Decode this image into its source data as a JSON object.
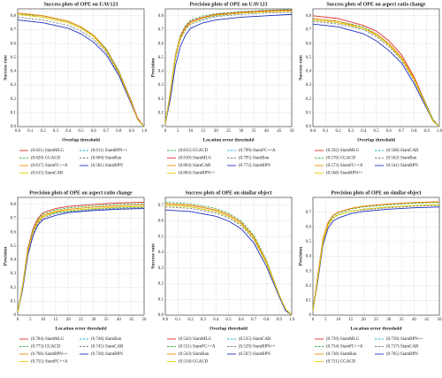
{
  "chart_data": [
    {
      "type": "line",
      "title": "Success plots of OPE on UAV123",
      "x_label": "Overlap threshold",
      "y_label": "Success rate",
      "grid": true,
      "xlim": [
        0,
        1
      ],
      "xticks": [
        {
          "value": 0,
          "label": "0.0"
        },
        0.1,
        0.2,
        0.3,
        0.4,
        0.5,
        0.6,
        0.7,
        0.8,
        0.9,
        {
          "value": 1,
          "label": "1.0"
        }
      ],
      "ylim": [
        0,
        0.85
      ],
      "yticks": [
        {
          "value": 0,
          "label": "0.0"
        },
        0.1,
        0.2,
        0.3,
        0.4,
        0.5,
        0.6,
        0.7,
        0.8
      ],
      "x": [
        0,
        0.2,
        0.4,
        0.5,
        0.6,
        0.7,
        0.8,
        0.9,
        0.95,
        1
      ],
      "series": [
        {
          "name": "(0.621) SiamMLG",
          "color": "#e03030",
          "dashed": false,
          "values": [
            0.82,
            0.8,
            0.76,
            0.72,
            0.66,
            0.56,
            0.4,
            0.18,
            0.06,
            0
          ]
        },
        {
          "name": "(0.611) SiamRPN++",
          "color": "#20b0d0",
          "dashed": true,
          "values": [
            0.81,
            0.79,
            0.75,
            0.71,
            0.65,
            0.55,
            0.39,
            0.17,
            0.05,
            0
          ]
        },
        {
          "name": "(0.620) CGACD",
          "color": "#3cb043",
          "dashed": true,
          "values": [
            0.81,
            0.8,
            0.76,
            0.72,
            0.66,
            0.56,
            0.4,
            0.17,
            0.05,
            0
          ]
        },
        {
          "name": "(0.604) SiamBan",
          "color": "#808080",
          "dashed": true,
          "values": [
            0.79,
            0.77,
            0.73,
            0.69,
            0.63,
            0.54,
            0.38,
            0.17,
            0.05,
            0
          ]
        },
        {
          "name": "(0.617) SiamFC++A",
          "color": "#f08c00",
          "dashed": false,
          "values": [
            0.82,
            0.8,
            0.76,
            0.72,
            0.66,
            0.55,
            0.39,
            0.17,
            0.05,
            0
          ]
        },
        {
          "name": "(0.581) SiamRPN",
          "color": "#2030c0",
          "dashed": false,
          "values": [
            0.77,
            0.75,
            0.71,
            0.67,
            0.61,
            0.52,
            0.37,
            0.16,
            0.05,
            0
          ]
        },
        {
          "name": "(0.615) SiamCAR",
          "color": "#e6d000",
          "dashed": false,
          "values": [
            0.81,
            0.79,
            0.75,
            0.71,
            0.65,
            0.55,
            0.39,
            0.17,
            0.05,
            0
          ]
        }
      ]
    },
    {
      "type": "line",
      "title": "Precision plots of OPE on UAV123",
      "x_label": "Location error threshold",
      "y_label": "Precision",
      "grid": true,
      "xlim": [
        0,
        50
      ],
      "xticks": [
        0,
        5,
        10,
        15,
        20,
        25,
        30,
        35,
        40,
        45,
        50
      ],
      "ylim": [
        0,
        0.85
      ],
      "yticks": [
        0,
        0.1,
        0.2,
        0.3,
        0.4,
        0.5,
        0.6,
        0.7,
        0.8
      ],
      "x": [
        0,
        2,
        4,
        6,
        8,
        10,
        15,
        20,
        30,
        40,
        50
      ],
      "series": [
        {
          "name": "(0.815) CGACD",
          "color": "#3cb043",
          "dashed": true,
          "values": [
            0.02,
            0.25,
            0.52,
            0.66,
            0.73,
            0.77,
            0.8,
            0.815,
            0.83,
            0.84,
            0.845
          ]
        },
        {
          "name": "(0.799) SiamFC++A",
          "color": "#20b0d0",
          "dashed": true,
          "values": [
            0.02,
            0.24,
            0.5,
            0.64,
            0.71,
            0.75,
            0.78,
            0.8,
            0.82,
            0.83,
            0.835
          ]
        },
        {
          "name": "(0.810) SiamMLG",
          "color": "#e03030",
          "dashed": false,
          "values": [
            0.02,
            0.25,
            0.51,
            0.65,
            0.72,
            0.76,
            0.79,
            0.81,
            0.825,
            0.835,
            0.84
          ]
        },
        {
          "name": "(0.795) SiamBan",
          "color": "#808080",
          "dashed": true,
          "values": [
            0.02,
            0.23,
            0.49,
            0.63,
            0.7,
            0.74,
            0.77,
            0.795,
            0.81,
            0.82,
            0.825
          ]
        },
        {
          "name": "(0.804) SiamCAR",
          "color": "#f08c00",
          "dashed": false,
          "values": [
            0.02,
            0.24,
            0.5,
            0.64,
            0.71,
            0.75,
            0.785,
            0.805,
            0.82,
            0.83,
            0.835
          ]
        },
        {
          "name": "(0.772) SiamRPN",
          "color": "#2030c0",
          "dashed": false,
          "values": [
            0.02,
            0.2,
            0.44,
            0.58,
            0.66,
            0.71,
            0.75,
            0.77,
            0.79,
            0.8,
            0.81
          ]
        },
        {
          "name": "(0.804) SiamRPN++",
          "color": "#e6d000",
          "dashed": false,
          "values": [
            0.02,
            0.24,
            0.5,
            0.64,
            0.71,
            0.75,
            0.785,
            0.805,
            0.82,
            0.83,
            0.835
          ]
        }
      ]
    },
    {
      "type": "line",
      "title": "Success plots of OPE on aspect ratio change",
      "x_label": "Overlap threshold",
      "y_label": "Success rate",
      "grid": true,
      "xlim": [
        0,
        1
      ],
      "xticks": [
        {
          "value": 0,
          "label": "0.0"
        },
        0.1,
        0.2,
        0.3,
        0.4,
        0.5,
        0.6,
        0.7,
        0.8,
        0.9,
        {
          "value": 1,
          "label": "1.0"
        }
      ],
      "ylim": [
        0,
        0.85
      ],
      "yticks": [
        {
          "value": 0,
          "label": "0.0"
        },
        0.1,
        0.2,
        0.3,
        0.4,
        0.5,
        0.6,
        0.7,
        0.8
      ],
      "x": [
        0,
        0.2,
        0.4,
        0.5,
        0.6,
        0.7,
        0.8,
        0.9,
        0.95,
        1
      ],
      "series": [
        {
          "name": "(0.592) SiamMLG",
          "color": "#e03030",
          "dashed": false,
          "values": [
            0.8,
            0.78,
            0.73,
            0.69,
            0.62,
            0.52,
            0.36,
            0.15,
            0.05,
            0
          ]
        },
        {
          "name": "(0.568) SiamCAR",
          "color": "#20b0d0",
          "dashed": true,
          "values": [
            0.77,
            0.75,
            0.71,
            0.66,
            0.59,
            0.49,
            0.34,
            0.14,
            0.04,
            0
          ]
        },
        {
          "name": "(0.576) CGACD",
          "color": "#3cb043",
          "dashed": true,
          "values": [
            0.78,
            0.76,
            0.72,
            0.67,
            0.6,
            0.5,
            0.35,
            0.15,
            0.05,
            0
          ]
        },
        {
          "name": "(0.562) SiamBan",
          "color": "#808080",
          "dashed": true,
          "values": [
            0.76,
            0.74,
            0.7,
            0.65,
            0.58,
            0.48,
            0.33,
            0.14,
            0.04,
            0
          ]
        },
        {
          "name": "(0.573) SiamFC++A",
          "color": "#f08c00",
          "dashed": false,
          "values": [
            0.78,
            0.76,
            0.71,
            0.67,
            0.6,
            0.5,
            0.35,
            0.14,
            0.04,
            0
          ]
        },
        {
          "name": "(0.541) SiamRPN",
          "color": "#2030c0",
          "dashed": false,
          "values": [
            0.74,
            0.72,
            0.67,
            0.62,
            0.55,
            0.46,
            0.31,
            0.13,
            0.04,
            0
          ]
        },
        {
          "name": "(0.568) SiamRPN++",
          "color": "#e6d000",
          "dashed": false,
          "values": [
            0.77,
            0.75,
            0.71,
            0.66,
            0.59,
            0.49,
            0.34,
            0.14,
            0.04,
            0
          ]
        }
      ]
    },
    {
      "type": "line",
      "title": "Precision plots of OPE on aspect ratio change",
      "x_label": "Location error threshold",
      "y_label": "Precision",
      "grid": true,
      "xlim": [
        0,
        50
      ],
      "xticks": [
        0,
        5,
        10,
        15,
        20,
        25,
        30,
        35,
        40,
        45,
        50
      ],
      "ylim": [
        0,
        0.85
      ],
      "yticks": [
        0,
        0.1,
        0.2,
        0.3,
        0.4,
        0.5,
        0.6,
        0.7,
        0.8
      ],
      "x": [
        0,
        2,
        4,
        6,
        8,
        10,
        15,
        20,
        30,
        40,
        50
      ],
      "series": [
        {
          "name": "(0.784) SiamMLG",
          "color": "#e03030",
          "dashed": false,
          "values": [
            0.02,
            0.22,
            0.48,
            0.62,
            0.7,
            0.74,
            0.77,
            0.785,
            0.8,
            0.81,
            0.815
          ]
        },
        {
          "name": "(0.748) SiamBan",
          "color": "#20b0d0",
          "dashed": true,
          "values": [
            0.02,
            0.2,
            0.45,
            0.59,
            0.67,
            0.71,
            0.74,
            0.75,
            0.765,
            0.775,
            0.78
          ]
        },
        {
          "name": "(0.773) CGACD",
          "color": "#3cb043",
          "dashed": true,
          "values": [
            0.02,
            0.22,
            0.47,
            0.61,
            0.69,
            0.73,
            0.76,
            0.775,
            0.79,
            0.8,
            0.805
          ]
        },
        {
          "name": "(0.745) SiamCAR",
          "color": "#808080",
          "dashed": true,
          "values": [
            0.02,
            0.2,
            0.45,
            0.59,
            0.66,
            0.7,
            0.735,
            0.745,
            0.76,
            0.77,
            0.775
          ]
        },
        {
          "name": "(0.766) SiamRPN++",
          "color": "#f08c00",
          "dashed": false,
          "values": [
            0.02,
            0.21,
            0.46,
            0.6,
            0.68,
            0.72,
            0.75,
            0.765,
            0.78,
            0.79,
            0.795
          ]
        },
        {
          "name": "(0.738) SiamRPN",
          "color": "#2030c0",
          "dashed": false,
          "values": [
            0.02,
            0.19,
            0.43,
            0.57,
            0.65,
            0.69,
            0.72,
            0.74,
            0.755,
            0.765,
            0.77
          ]
        },
        {
          "name": "(0.755) SiamFC++A",
          "color": "#e6d000",
          "dashed": false,
          "values": [
            0.02,
            0.21,
            0.46,
            0.6,
            0.67,
            0.71,
            0.745,
            0.755,
            0.77,
            0.78,
            0.785
          ]
        }
      ]
    },
    {
      "type": "line",
      "title": "Success plots of OPE on similar object",
      "x_label": "Overlap threshold",
      "y_label": "Success rate",
      "grid": true,
      "xlim": [
        0,
        1
      ],
      "xticks": [
        {
          "value": 0,
          "label": "0.0"
        },
        0.1,
        0.2,
        0.3,
        0.4,
        0.5,
        0.6,
        0.7,
        0.8,
        0.9,
        {
          "value": 1,
          "label": "1.0"
        }
      ],
      "ylim": [
        0,
        0.75
      ],
      "yticks": [
        {
          "value": 0,
          "label": "0.0"
        },
        0.1,
        0.2,
        0.3,
        0.4,
        0.5,
        0.6,
        0.7
      ],
      "x": [
        0,
        0.2,
        0.4,
        0.5,
        0.6,
        0.7,
        0.8,
        0.9,
        0.95,
        1
      ],
      "series": [
        {
          "name": "(0.542) SiamMLG",
          "color": "#e03030",
          "dashed": false,
          "values": [
            0.71,
            0.7,
            0.67,
            0.64,
            0.59,
            0.5,
            0.34,
            0.13,
            0.04,
            0
          ]
        },
        {
          "name": "(0.535) SiamCAR",
          "color": "#20b0d0",
          "dashed": true,
          "values": [
            0.7,
            0.69,
            0.66,
            0.63,
            0.58,
            0.49,
            0.33,
            0.13,
            0.04,
            0
          ]
        },
        {
          "name": "(0.551) SiamFC++A",
          "color": "#3cb043",
          "dashed": true,
          "values": [
            0.72,
            0.71,
            0.68,
            0.65,
            0.6,
            0.51,
            0.35,
            0.13,
            0.04,
            0
          ]
        },
        {
          "name": "(0.529) SiamRPN++",
          "color": "#808080",
          "dashed": true,
          "values": [
            0.69,
            0.68,
            0.65,
            0.62,
            0.57,
            0.48,
            0.33,
            0.12,
            0.04,
            0
          ]
        },
        {
          "name": "(0.543) SiamBan",
          "color": "#f08c00",
          "dashed": false,
          "values": [
            0.71,
            0.7,
            0.67,
            0.64,
            0.59,
            0.5,
            0.34,
            0.13,
            0.04,
            0
          ]
        },
        {
          "name": "(0.507) SiamRPN",
          "color": "#2030c0",
          "dashed": false,
          "values": [
            0.67,
            0.66,
            0.63,
            0.6,
            0.55,
            0.46,
            0.31,
            0.12,
            0.03,
            0
          ]
        },
        {
          "name": "(0.534) CGACD",
          "color": "#e6d000",
          "dashed": false,
          "values": [
            0.7,
            0.69,
            0.66,
            0.63,
            0.58,
            0.49,
            0.33,
            0.13,
            0.04,
            0
          ]
        }
      ]
    },
    {
      "type": "line",
      "title": "Precision plots of OPE on similar object",
      "x_label": "Location error threshold",
      "y_label": "Precision",
      "grid": true,
      "xlim": [
        0,
        50
      ],
      "xticks": [
        0,
        5,
        10,
        15,
        20,
        25,
        30,
        35,
        40,
        45,
        50
      ],
      "ylim": [
        0,
        0.8
      ],
      "yticks": [
        0,
        0.1,
        0.2,
        0.3,
        0.4,
        0.5,
        0.6,
        0.7
      ],
      "x": [
        0,
        2,
        4,
        6,
        8,
        10,
        15,
        20,
        30,
        40,
        50
      ],
      "series": [
        {
          "name": "(0.739) SiamMLG",
          "color": "#e03030",
          "dashed": false,
          "values": [
            0.03,
            0.28,
            0.52,
            0.63,
            0.68,
            0.7,
            0.725,
            0.74,
            0.755,
            0.765,
            0.77
          ]
        },
        {
          "name": "(0.720) SiamRPN++",
          "color": "#20b0d0",
          "dashed": true,
          "values": [
            0.03,
            0.26,
            0.5,
            0.61,
            0.66,
            0.68,
            0.705,
            0.72,
            0.735,
            0.745,
            0.75
          ]
        },
        {
          "name": "(0.734) SiamFC++A",
          "color": "#3cb043",
          "dashed": true,
          "values": [
            0.03,
            0.27,
            0.51,
            0.62,
            0.67,
            0.69,
            0.72,
            0.735,
            0.75,
            0.76,
            0.765
          ]
        },
        {
          "name": "(0.717) SiamCAR",
          "color": "#808080",
          "dashed": true,
          "values": [
            0.03,
            0.26,
            0.5,
            0.61,
            0.66,
            0.68,
            0.705,
            0.715,
            0.73,
            0.74,
            0.745
          ]
        },
        {
          "name": "(0.738) SiamBan",
          "color": "#f08c00",
          "dashed": false,
          "values": [
            0.03,
            0.27,
            0.52,
            0.63,
            0.68,
            0.7,
            0.725,
            0.74,
            0.755,
            0.765,
            0.77
          ]
        },
        {
          "name": "(0.705) SiamRPN",
          "color": "#2030c0",
          "dashed": false,
          "values": [
            0.03,
            0.24,
            0.48,
            0.59,
            0.64,
            0.66,
            0.69,
            0.705,
            0.72,
            0.73,
            0.735
          ]
        },
        {
          "name": "(0.721) CGACD",
          "color": "#e6d000",
          "dashed": false,
          "values": [
            0.03,
            0.26,
            0.5,
            0.61,
            0.66,
            0.68,
            0.705,
            0.72,
            0.735,
            0.745,
            0.75
          ]
        }
      ]
    }
  ]
}
